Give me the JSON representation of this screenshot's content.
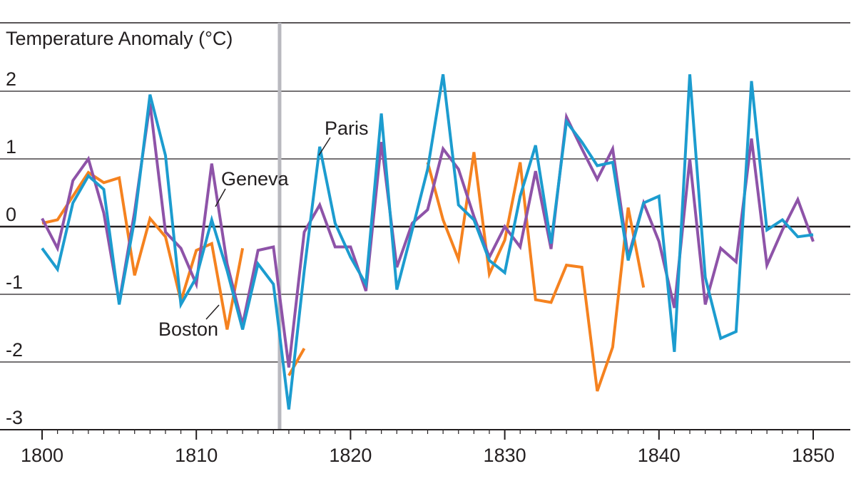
{
  "chart_data": {
    "type": "line",
    "title": "",
    "ylabel": "Temperature Anomaly (°C)",
    "xlabel": "",
    "xlim": [
      1797.5,
      1852
    ],
    "ylim": [
      -3.2,
      3.0
    ],
    "yticks": [
      2,
      1,
      0,
      -1,
      -2,
      -3
    ],
    "ytick_labels": [
      "2",
      "1",
      "0",
      "-1",
      "-2",
      "-3"
    ],
    "xticks": [
      1800,
      1810,
      1820,
      1830,
      1840,
      1850
    ],
    "xtick_labels": [
      "1800",
      "1810",
      "1820",
      "1830",
      "1840",
      "1850"
    ],
    "grid": true,
    "marker_year": 1815.4,
    "series": [
      {
        "name": "Boston",
        "color": "#f5821f",
        "points": [
          [
            1800,
            0.05
          ],
          [
            1801,
            0.1
          ],
          [
            1802,
            0.45
          ],
          [
            1803,
            0.8
          ],
          [
            1804,
            0.65
          ],
          [
            1805,
            0.72
          ],
          [
            1806,
            -0.72
          ],
          [
            1807,
            0.12
          ],
          [
            1808,
            -0.15
          ],
          [
            1809,
            -1.1
          ],
          [
            1810,
            -0.35
          ],
          [
            1811,
            -0.25
          ],
          [
            1812,
            -1.52
          ],
          [
            1813,
            -0.32
          ],
          null,
          [
            1816,
            -2.2
          ],
          [
            1817,
            -1.8
          ],
          null,
          [
            1825,
            0.95
          ],
          [
            1826,
            0.1
          ],
          [
            1827,
            -0.48
          ],
          [
            1828,
            1.1
          ],
          [
            1829,
            -0.7
          ],
          [
            1830,
            -0.2
          ],
          [
            1831,
            0.95
          ],
          [
            1832,
            -1.08
          ],
          [
            1833,
            -1.12
          ],
          [
            1834,
            -0.57
          ],
          [
            1835,
            -0.6
          ],
          [
            1836,
            -2.43
          ],
          [
            1837,
            -1.78
          ],
          [
            1838,
            0.28
          ],
          [
            1839,
            -0.9
          ]
        ]
      },
      {
        "name": "Geneva",
        "color": "#8e53a8",
        "points": [
          [
            1800,
            0.12
          ],
          [
            1801,
            -0.32
          ],
          [
            1802,
            0.68
          ],
          [
            1803,
            1.0
          ],
          [
            1804,
            0.2
          ],
          [
            1805,
            -1.12
          ],
          [
            1806,
            0.22
          ],
          [
            1807,
            1.82
          ],
          [
            1808,
            -0.08
          ],
          [
            1809,
            -0.32
          ],
          [
            1810,
            -0.85
          ],
          [
            1811,
            0.93
          ],
          [
            1812,
            -0.55
          ],
          [
            1813,
            -1.45
          ],
          [
            1814,
            -0.35
          ],
          [
            1815,
            -0.3
          ],
          [
            1816,
            -2.08
          ],
          [
            1817,
            -0.08
          ],
          [
            1818,
            0.32
          ],
          [
            1819,
            -0.3
          ],
          [
            1820,
            -0.3
          ],
          [
            1821,
            -0.95
          ],
          [
            1822,
            1.25
          ],
          [
            1823,
            -0.6
          ],
          [
            1824,
            0.05
          ],
          [
            1825,
            0.25
          ],
          [
            1826,
            1.15
          ],
          [
            1827,
            0.85
          ],
          [
            1828,
            0.15
          ],
          [
            1829,
            -0.45
          ],
          [
            1830,
            0.0
          ],
          [
            1831,
            -0.3
          ],
          [
            1832,
            0.82
          ],
          [
            1833,
            -0.33
          ],
          [
            1834,
            1.62
          ],
          [
            1835,
            1.15
          ],
          [
            1836,
            0.7
          ],
          [
            1837,
            1.15
          ],
          [
            1838,
            -0.45
          ],
          [
            1839,
            0.35
          ],
          [
            1840,
            -0.22
          ],
          [
            1841,
            -1.2
          ],
          [
            1842,
            1.0
          ],
          [
            1843,
            -1.15
          ],
          [
            1844,
            -0.32
          ],
          [
            1845,
            -0.52
          ],
          [
            1846,
            1.3
          ],
          [
            1847,
            -0.57
          ],
          [
            1848,
            -0.05
          ],
          [
            1849,
            0.4
          ],
          [
            1850,
            -0.22
          ]
        ]
      },
      {
        "name": "Paris",
        "color": "#1c9ccf",
        "points": [
          [
            1800,
            -0.32
          ],
          [
            1801,
            -0.63
          ],
          [
            1802,
            0.35
          ],
          [
            1803,
            0.75
          ],
          [
            1804,
            0.55
          ],
          [
            1805,
            -1.15
          ],
          [
            1806,
            0.1
          ],
          [
            1807,
            1.95
          ],
          [
            1808,
            1.05
          ],
          [
            1809,
            -1.15
          ],
          [
            1810,
            -0.75
          ],
          [
            1811,
            0.1
          ],
          [
            1812,
            -0.65
          ],
          [
            1813,
            -1.52
          ],
          [
            1814,
            -0.55
          ],
          [
            1815,
            -0.85
          ],
          [
            1816,
            -2.7
          ],
          [
            1817,
            -0.65
          ],
          [
            1818,
            1.18
          ],
          [
            1819,
            0.05
          ],
          [
            1820,
            -0.45
          ],
          [
            1821,
            -0.85
          ],
          [
            1822,
            1.67
          ],
          [
            1823,
            -0.93
          ],
          [
            1824,
            -0.05
          ],
          [
            1825,
            0.85
          ],
          [
            1826,
            2.25
          ],
          [
            1827,
            0.32
          ],
          [
            1828,
            0.1
          ],
          [
            1829,
            -0.5
          ],
          [
            1830,
            -0.68
          ],
          [
            1831,
            0.45
          ],
          [
            1832,
            1.2
          ],
          [
            1833,
            -0.25
          ],
          [
            1834,
            1.55
          ],
          [
            1835,
            1.25
          ],
          [
            1836,
            0.9
          ],
          [
            1837,
            0.95
          ],
          [
            1838,
            -0.5
          ],
          [
            1839,
            0.35
          ],
          [
            1840,
            0.45
          ],
          [
            1841,
            -1.85
          ],
          [
            1842,
            2.25
          ],
          [
            1843,
            -0.75
          ],
          [
            1844,
            -1.65
          ],
          [
            1845,
            -1.55
          ],
          [
            1846,
            2.15
          ],
          [
            1847,
            -0.05
          ],
          [
            1848,
            0.1
          ],
          [
            1849,
            -0.15
          ],
          [
            1850,
            -0.12
          ]
        ]
      }
    ],
    "annotations": [
      {
        "text": "Paris",
        "series": "Paris"
      },
      {
        "text": "Geneva",
        "series": "Geneva"
      },
      {
        "text": "Boston",
        "series": "Boston"
      }
    ]
  }
}
